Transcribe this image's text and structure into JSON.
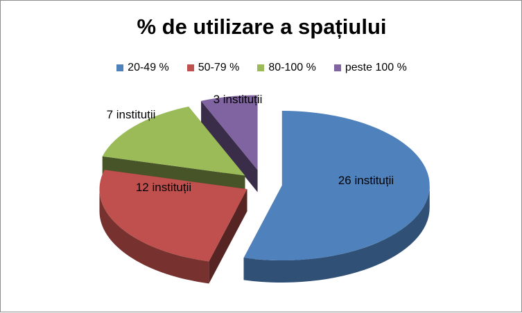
{
  "chart_data": {
    "type": "pie",
    "title": "% de utilizare a spațiului",
    "categories": [
      "20-49 %",
      "50-79 %",
      "80-100 %",
      "peste 100 %"
    ],
    "values": [
      26,
      12,
      7,
      3
    ],
    "data_labels": [
      "26 instituții",
      "12 instituții",
      "7 instituții",
      "3 instituții"
    ],
    "colors": [
      "#4f81bd",
      "#c0504d",
      "#9bbb59",
      "#8064a2"
    ],
    "legend_position": "top",
    "exploded": true,
    "three_d": true
  }
}
